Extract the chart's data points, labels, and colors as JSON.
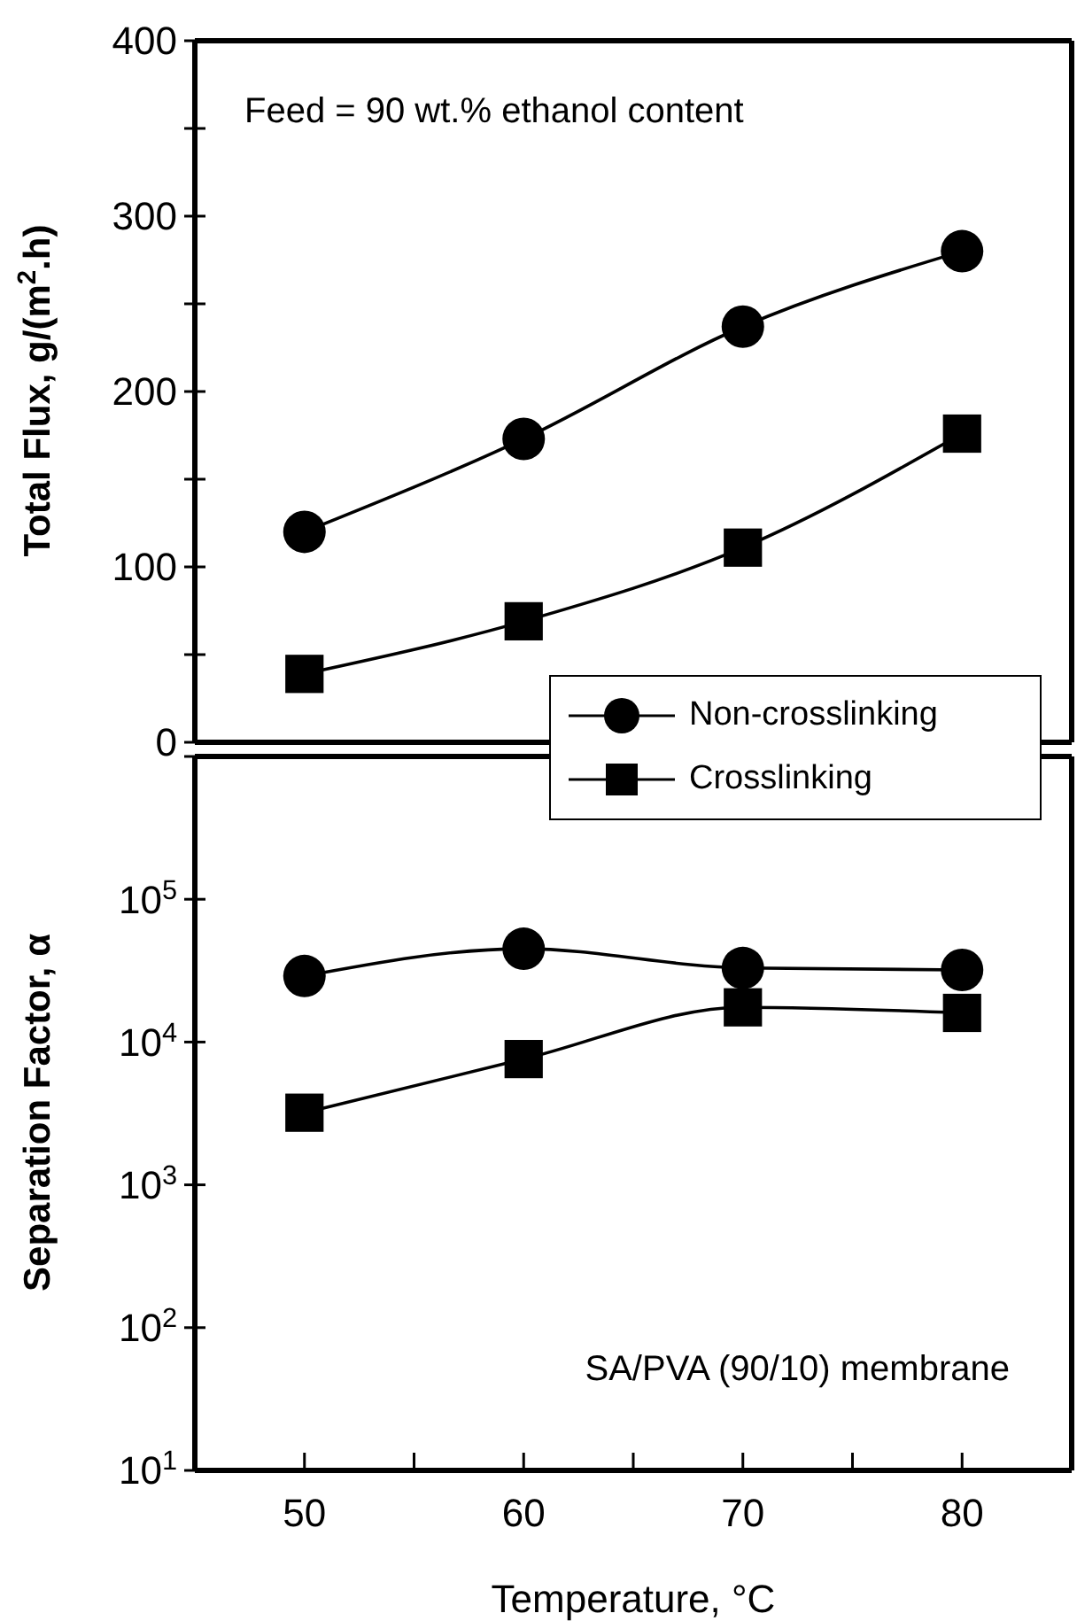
{
  "chart_data": [
    {
      "type": "line",
      "ylabel": "Total Flux, g/(m$^{2}$.h)",
      "x": [
        50,
        60,
        70,
        80
      ],
      "xlim": [
        45,
        85
      ],
      "ylim": [
        0,
        400
      ],
      "yticks": [
        0,
        {
          "value": 50,
          "label": null
        },
        100,
        {
          "value": 150,
          "label": null
        },
        200,
        {
          "value": 250,
          "label": null
        },
        300,
        {
          "value": 350,
          "label": null
        },
        400
      ],
      "tick_labels": "y",
      "grid": false,
      "legend": "bottom right",
      "line_style": "solid",
      "annotations": [
        "Feed = 90 wt.% ethanol content"
      ],
      "series": [
        {
          "name": "Non-crosslinking",
          "color": "#000000",
          "marker": "circle",
          "values": [
            120,
            173,
            237,
            280
          ]
        },
        {
          "name": "Crosslinking",
          "color": "#000000",
          "marker": "square",
          "values": [
            39,
            69,
            111,
            176
          ]
        }
      ]
    },
    {
      "type": "line",
      "ylabel": "Separation Factor, α",
      "xlabel": "Temperature, °C",
      "x": [
        50,
        60,
        70,
        80
      ],
      "xlim": [
        45,
        85
      ],
      "xticks": [
        50,
        {
          "value": 55,
          "label": null
        },
        60,
        {
          "value": 65,
          "label": null
        },
        70,
        {
          "value": 75,
          "label": null
        },
        80
      ],
      "ylim": [
        10,
        1000000
      ],
      "yticks": [
        {
          "value": 10,
          "label": "10$^{1}$"
        },
        {
          "value": 100,
          "label": "10$^{2}$"
        },
        {
          "value": 1000,
          "label": "10$^{3}$"
        },
        {
          "value": 10000,
          "label": "10$^{4}$"
        },
        {
          "value": 100000,
          "label": "10$^{5}$"
        },
        {
          "value": 1000000,
          "label": null
        }
      ],
      "log": true,
      "grid": false,
      "line_style": "solid",
      "annotations": [
        "SA/PVA (90/10) membrane"
      ],
      "series": [
        {
          "color": "#000000",
          "marker": "circle",
          "values": [
            29000,
            45000,
            33000,
            32000
          ]
        },
        {
          "color": "#000000",
          "marker": "square",
          "values": [
            3200,
            7600,
            17500,
            16000
          ]
        }
      ]
    }
  ]
}
